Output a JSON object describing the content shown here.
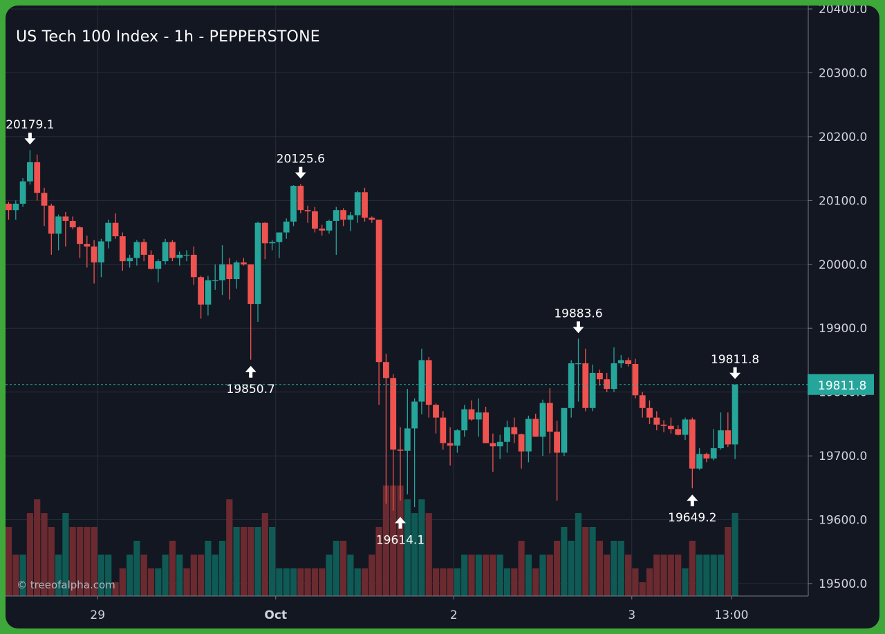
{
  "title": "US Tech 100 Index - 1h - PEPPERSTONE",
  "watermark": "© treeofalpha.com",
  "colors": {
    "background": "#131722",
    "frame": "#3fa83a",
    "up": "#26a69a",
    "down": "#ef5350",
    "up_volume": "#0f5a55",
    "down_volume": "#6b2a2f",
    "grid": "#2a2e39",
    "text": "#d1d4dc",
    "last_price_tag": "#26a69a"
  },
  "chart_data": {
    "type": "candlestick",
    "symbol": "US Tech 100 Index",
    "interval": "1h",
    "source": "PEPPERSTONE",
    "y_range": [
      19475,
      20400
    ],
    "y_ticks": [
      "20400.0",
      "20300.0",
      "20200.0",
      "20100.0",
      "20000.0",
      "19900.0",
      "19800.0",
      "19700.0",
      "19600.0",
      "19500.0"
    ],
    "x_ticks": [
      {
        "label": "29",
        "index": 12.5
      },
      {
        "label": "Oct",
        "index": 37.5,
        "bold": true
      },
      {
        "label": "2",
        "index": 62.5
      },
      {
        "label": "3",
        "index": 87.5
      },
      {
        "label": "13:00",
        "index": 101.5
      }
    ],
    "last_price": "19811.8",
    "annotations": [
      {
        "label": "20179.1",
        "index": 3,
        "value": 20179.1,
        "kind": "high"
      },
      {
        "label": "20125.6",
        "index": 41,
        "value": 20125.6,
        "kind": "high"
      },
      {
        "label": "19850.7",
        "index": 34,
        "value": 19850.7,
        "kind": "low"
      },
      {
        "label": "19614.1",
        "index": 55,
        "value": 19614.1,
        "kind": "low"
      },
      {
        "label": "19883.6",
        "index": 80,
        "value": 19883.6,
        "kind": "high"
      },
      {
        "label": "19649.2",
        "index": 96,
        "value": 19649.2,
        "kind": "low"
      },
      {
        "label": "19811.8",
        "index": 102,
        "value": 19811.8,
        "kind": "high"
      }
    ],
    "candles": [
      [
        20095,
        20098,
        20070,
        20085
      ],
      [
        20085,
        20100,
        20070,
        20095
      ],
      [
        20095,
        20135,
        20090,
        20130
      ],
      [
        20130,
        20179.1,
        20125,
        20160
      ],
      [
        20160,
        20172,
        20100,
        20112
      ],
      [
        20112,
        20120,
        20060,
        20092
      ],
      [
        20092,
        20095,
        20015,
        20048
      ],
      [
        20048,
        20078,
        20022,
        20075
      ],
      [
        20075,
        20082,
        20028,
        20068
      ],
      [
        20068,
        20075,
        20055,
        20058
      ],
      [
        20058,
        20060,
        20010,
        20032
      ],
      [
        20032,
        20045,
        19995,
        20028
      ],
      [
        20028,
        20038,
        19970,
        20003
      ],
      [
        20003,
        20040,
        19980,
        20036
      ],
      [
        20036,
        20070,
        20025,
        20065
      ],
      [
        20065,
        20080,
        20040,
        20044
      ],
      [
        20044,
        20050,
        19990,
        20005
      ],
      [
        20005,
        20015,
        19995,
        20010
      ],
      [
        20010,
        20038,
        19998,
        20035
      ],
      [
        20035,
        20040,
        20005,
        20015
      ],
      [
        20015,
        20022,
        19992,
        19993
      ],
      [
        19993,
        20008,
        19972,
        20005
      ],
      [
        20005,
        20040,
        20000,
        20035
      ],
      [
        20035,
        20038,
        20005,
        20010
      ],
      [
        20010,
        20020,
        19998,
        20015
      ],
      [
        20015,
        20022,
        20005,
        20015
      ],
      [
        20015,
        20028,
        19968,
        19980
      ],
      [
        19980,
        19982,
        19915,
        19937
      ],
      [
        19937,
        19982,
        19920,
        19975
      ],
      [
        19975,
        20000,
        19960,
        19975
      ],
      [
        19975,
        20030,
        19952,
        20000
      ],
      [
        20000,
        20010,
        19945,
        19977
      ],
      [
        19977,
        20006,
        19962,
        20003
      ],
      [
        20003,
        20010,
        19998,
        20000
      ],
      [
        20000,
        20000,
        19850.7,
        19938
      ],
      [
        19938,
        20067,
        19910,
        20065
      ],
      [
        20065,
        20066,
        20008,
        20033
      ],
      [
        20033,
        20038,
        20022,
        20035
      ],
      [
        20035,
        20045,
        20010,
        20050
      ],
      [
        20050,
        20072,
        20040,
        20067
      ],
      [
        20067,
        20124,
        20060,
        20123
      ],
      [
        20123,
        20125.6,
        20080,
        20085
      ],
      [
        20085,
        20092,
        20065,
        20083
      ],
      [
        20083,
        20090,
        20050,
        20056
      ],
      [
        20056,
        20062,
        20045,
        20053
      ],
      [
        20053,
        20070,
        20048,
        20068
      ],
      [
        20068,
        20090,
        20015,
        20085
      ],
      [
        20085,
        20088,
        20060,
        20070
      ],
      [
        20070,
        20082,
        20052,
        20077
      ],
      [
        20077,
        20115,
        20065,
        20113
      ],
      [
        20113,
        20120,
        20067,
        20073
      ],
      [
        20073,
        20075,
        20065,
        20070
      ],
      [
        20070,
        20068,
        19780,
        19847
      ],
      [
        19847,
        19860,
        19625,
        19822
      ],
      [
        19822,
        19828,
        19614.1,
        19710
      ],
      [
        19710,
        19745,
        19630,
        19708
      ],
      [
        19708,
        19805,
        19640,
        19743
      ],
      [
        19743,
        19790,
        19620,
        19785
      ],
      [
        19785,
        19868,
        19765,
        19850
      ],
      [
        19850,
        19855,
        19760,
        19780
      ],
      [
        19780,
        19782,
        19735,
        19760
      ],
      [
        19760,
        19770,
        19710,
        19720
      ],
      [
        19720,
        19745,
        19685,
        19716
      ],
      [
        19716,
        19742,
        19705,
        19740
      ],
      [
        19740,
        19780,
        19730,
        19773
      ],
      [
        19773,
        19787,
        19755,
        19757
      ],
      [
        19757,
        19790,
        19730,
        19768
      ],
      [
        19768,
        19777,
        19720,
        19720
      ],
      [
        19720,
        19735,
        19675,
        19715
      ],
      [
        19715,
        19733,
        19695,
        19722
      ],
      [
        19722,
        19755,
        19705,
        19745
      ],
      [
        19745,
        19760,
        19720,
        19734
      ],
      [
        19734,
        19735,
        19680,
        19707
      ],
      [
        19707,
        19763,
        19690,
        19758
      ],
      [
        19758,
        19766,
        19730,
        19730
      ],
      [
        19730,
        19788,
        19700,
        19783
      ],
      [
        19783,
        19806,
        19704,
        19738
      ],
      [
        19738,
        19755,
        19630,
        19705
      ],
      [
        19705,
        19767,
        19700,
        19775
      ],
      [
        19775,
        19850,
        19760,
        19845
      ],
      [
        19845,
        19883.6,
        19785,
        19845
      ],
      [
        19845,
        19868,
        19770,
        19775
      ],
      [
        19775,
        19843,
        19770,
        19830
      ],
      [
        19830,
        19835,
        19810,
        19820
      ],
      [
        19820,
        19830,
        19800,
        19805
      ],
      [
        19805,
        19870,
        19800,
        19845
      ],
      [
        19845,
        19858,
        19838,
        19850
      ],
      [
        19850,
        19854,
        19840,
        19844
      ],
      [
        19844,
        19852,
        19790,
        19795
      ],
      [
        19795,
        19800,
        19760,
        19775
      ],
      [
        19775,
        19787,
        19750,
        19760
      ],
      [
        19760,
        19770,
        19740,
        19749
      ],
      [
        19749,
        19756,
        19737,
        19747
      ],
      [
        19747,
        19760,
        19735,
        19742
      ],
      [
        19742,
        19748,
        19732,
        19733
      ],
      [
        19733,
        19760,
        19725,
        19757
      ],
      [
        19757,
        19760,
        19649.2,
        19680
      ],
      [
        19680,
        19712,
        19678,
        19703
      ],
      [
        19703,
        19705,
        19690,
        19696
      ],
      [
        19696,
        19742,
        19693,
        19712
      ],
      [
        19712,
        19768,
        19710,
        19740
      ],
      [
        19740,
        19768,
        19714,
        19718
      ],
      [
        19718,
        19811.8,
        19695,
        19811.8
      ]
    ],
    "volume": [
      5,
      3,
      3,
      6,
      7,
      6,
      5,
      3,
      6,
      5,
      5,
      5,
      5,
      3,
      3,
      1,
      2,
      3,
      4,
      3,
      2,
      2,
      3,
      4,
      3,
      2,
      3,
      3,
      4,
      3,
      4,
      7,
      5,
      5,
      5,
      5,
      6,
      5,
      2,
      2,
      2,
      2,
      2,
      2,
      2,
      3,
      4,
      4,
      3,
      2,
      2,
      3,
      5,
      8,
      8,
      8,
      7,
      6,
      7,
      6,
      2,
      2,
      2,
      2,
      3,
      3,
      3,
      3,
      3,
      3,
      2,
      2,
      4,
      3,
      2,
      3,
      3,
      4,
      5,
      4,
      6,
      5,
      5,
      4,
      3,
      4,
      4,
      3,
      2,
      1,
      2,
      3,
      3,
      3,
      3,
      2,
      4,
      3,
      3,
      3,
      3,
      5,
      6
    ],
    "volume_up": [
      false,
      false,
      true,
      false,
      false,
      false,
      false,
      true,
      true,
      false,
      false,
      false,
      false,
      true,
      true,
      false,
      false,
      true,
      true,
      false,
      false,
      true,
      true,
      false,
      true,
      false,
      false,
      false,
      true,
      true,
      true,
      false,
      true,
      false,
      false,
      true,
      false,
      true,
      true,
      true,
      true,
      false,
      false,
      false,
      false,
      true,
      true,
      false,
      true,
      true,
      false,
      false,
      false,
      false,
      false,
      false,
      true,
      true,
      true,
      false,
      false,
      false,
      false,
      true,
      true,
      false,
      true,
      false,
      false,
      true,
      true,
      false,
      false,
      true,
      false,
      true,
      false,
      false,
      true,
      true,
      true,
      false,
      true,
      false,
      false,
      true,
      true,
      false,
      false,
      false,
      false,
      false,
      false,
      false,
      false,
      true,
      false,
      true,
      true,
      true,
      true,
      false,
      true
    ]
  }
}
